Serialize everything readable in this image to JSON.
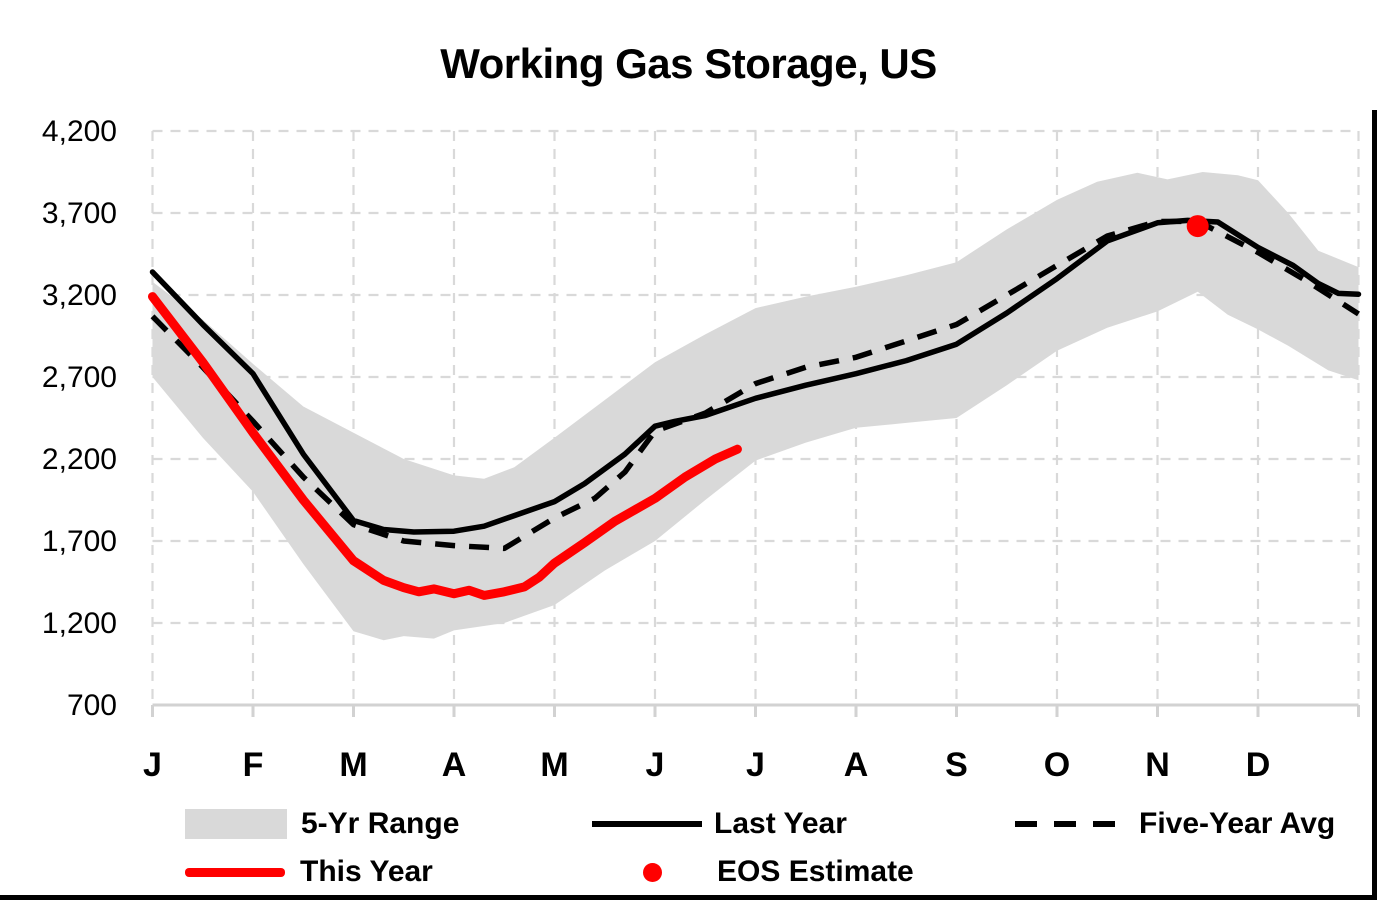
{
  "window": {
    "background": "#FFFFFF",
    "border_color": "#000000"
  },
  "title": "Working Gas Storage, US",
  "colors": {
    "band": "#D9D9D9",
    "gridline": "#D9D9D9",
    "black_series": "#000000",
    "red_series": "#FF0000",
    "text": "#000000"
  },
  "legend": {
    "position": "bottom",
    "items": [
      {
        "label": "5-Yr Range",
        "swatch": "gray-band-swatch"
      },
      {
        "label": "Last Year",
        "swatch": "black-line-swatch"
      },
      {
        "label": "Five-Year Avg",
        "swatch": "black-dashed-line-swatch"
      },
      {
        "label": "This Year",
        "swatch": "red-line-swatch"
      },
      {
        "label": "EOS Estimate",
        "swatch": "red-dot-swatch"
      }
    ]
  },
  "chart_data": {
    "type": "line",
    "title": "Working Gas Storage, US",
    "grid": true,
    "legend_position": "bottom",
    "x_axis": {
      "labels": [
        "J",
        "F",
        "M",
        "A",
        "M",
        "J",
        "J",
        "A",
        "S",
        "O",
        "N",
        "D"
      ],
      "unit": "month-start-index",
      "range": [
        0,
        12
      ],
      "gridlines": true
    },
    "y_axis": {
      "range": [
        700,
        4200
      ],
      "gridlines": true,
      "ticks": [
        {
          "value": 4200,
          "label": "4,200"
        },
        {
          "value": 3700,
          "label": "3,700"
        },
        {
          "value": 3200,
          "label": "3,200"
        },
        {
          "value": 2700,
          "label": "2,700"
        },
        {
          "value": 2200,
          "label": "2,200"
        },
        {
          "value": 1700,
          "label": "1,700"
        },
        {
          "value": 1200,
          "label": "1,200"
        },
        {
          "value": 700,
          "label": "700"
        }
      ]
    },
    "series": [
      {
        "name": "5-Yr Range",
        "type": "band",
        "color": "#D9D9D9",
        "upper": [
          [
            0,
            3280
          ],
          [
            0.5,
            3050
          ],
          [
            1,
            2780
          ],
          [
            1.5,
            2520
          ],
          [
            2,
            2360
          ],
          [
            2.5,
            2200
          ],
          [
            3,
            2100
          ],
          [
            3.3,
            2080
          ],
          [
            3.6,
            2150
          ],
          [
            4,
            2330
          ],
          [
            4.5,
            2560
          ],
          [
            5,
            2790
          ],
          [
            5.5,
            2960
          ],
          [
            6,
            3120
          ],
          [
            6.5,
            3190
          ],
          [
            7,
            3250
          ],
          [
            7.5,
            3320
          ],
          [
            8,
            3400
          ],
          [
            8.5,
            3600
          ],
          [
            9,
            3780
          ],
          [
            9.4,
            3890
          ],
          [
            9.8,
            3945
          ],
          [
            10.1,
            3905
          ],
          [
            10.45,
            3950
          ],
          [
            10.8,
            3930
          ],
          [
            11,
            3900
          ],
          [
            11.3,
            3700
          ],
          [
            11.6,
            3470
          ],
          [
            12,
            3370
          ]
        ],
        "lower": [
          [
            0,
            2700
          ],
          [
            0.5,
            2330
          ],
          [
            1,
            2000
          ],
          [
            1.5,
            1560
          ],
          [
            2,
            1150
          ],
          [
            2.3,
            1095
          ],
          [
            2.5,
            1120
          ],
          [
            2.8,
            1105
          ],
          [
            3,
            1155
          ],
          [
            3.5,
            1200
          ],
          [
            4,
            1310
          ],
          [
            4.5,
            1520
          ],
          [
            5,
            1700
          ],
          [
            5.5,
            1950
          ],
          [
            6,
            2190
          ],
          [
            6.5,
            2300
          ],
          [
            7,
            2390
          ],
          [
            7.5,
            2420
          ],
          [
            8,
            2450
          ],
          [
            8.5,
            2650
          ],
          [
            9,
            2860
          ],
          [
            9.5,
            3000
          ],
          [
            10,
            3100
          ],
          [
            10.4,
            3220
          ],
          [
            10.7,
            3080
          ],
          [
            11,
            2990
          ],
          [
            11.3,
            2890
          ],
          [
            11.7,
            2740
          ],
          [
            12,
            2680
          ]
        ]
      },
      {
        "name": "Last Year",
        "type": "line",
        "style": "solid",
        "color": "#000000",
        "width": 5.5,
        "points": [
          [
            0,
            3340
          ],
          [
            0.5,
            3020
          ],
          [
            1,
            2720
          ],
          [
            1.5,
            2230
          ],
          [
            2,
            1825
          ],
          [
            2.3,
            1770
          ],
          [
            2.6,
            1755
          ],
          [
            3,
            1760
          ],
          [
            3.3,
            1790
          ],
          [
            3.6,
            1855
          ],
          [
            4,
            1940
          ],
          [
            4.3,
            2050
          ],
          [
            4.7,
            2230
          ],
          [
            5,
            2400
          ],
          [
            5.2,
            2430
          ],
          [
            5.5,
            2465
          ],
          [
            6,
            2570
          ],
          [
            6.5,
            2650
          ],
          [
            7,
            2720
          ],
          [
            7.5,
            2800
          ],
          [
            8,
            2900
          ],
          [
            8.5,
            3090
          ],
          [
            9,
            3300
          ],
          [
            9.5,
            3530
          ],
          [
            10,
            3640
          ],
          [
            10.3,
            3655
          ],
          [
            10.6,
            3645
          ],
          [
            11,
            3490
          ],
          [
            11.35,
            3380
          ],
          [
            11.6,
            3270
          ],
          [
            11.8,
            3210
          ],
          [
            12,
            3205
          ]
        ]
      },
      {
        "name": "Five-Year Avg",
        "type": "line",
        "style": "dashed",
        "color": "#000000",
        "width": 5.5,
        "dash": "20 14",
        "points": [
          [
            0,
            3070
          ],
          [
            0.5,
            2760
          ],
          [
            1,
            2430
          ],
          [
            1.5,
            2090
          ],
          [
            2,
            1800
          ],
          [
            2.5,
            1700
          ],
          [
            3,
            1672
          ],
          [
            3.5,
            1655
          ],
          [
            4,
            1840
          ],
          [
            4.4,
            1960
          ],
          [
            4.7,
            2120
          ],
          [
            5,
            2370
          ],
          [
            5.5,
            2480
          ],
          [
            6,
            2660
          ],
          [
            6.5,
            2760
          ],
          [
            7,
            2820
          ],
          [
            7.5,
            2920
          ],
          [
            8,
            3020
          ],
          [
            8.5,
            3200
          ],
          [
            9,
            3380
          ],
          [
            9.5,
            3560
          ],
          [
            10,
            3648
          ],
          [
            10.4,
            3650
          ],
          [
            11,
            3460
          ],
          [
            11.5,
            3280
          ],
          [
            12,
            3085
          ]
        ]
      },
      {
        "name": "This Year",
        "type": "line",
        "style": "solid",
        "color": "#FF0000",
        "width": 9,
        "points": [
          [
            0,
            3190
          ],
          [
            0.5,
            2790
          ],
          [
            1,
            2360
          ],
          [
            1.5,
            1950
          ],
          [
            2,
            1580
          ],
          [
            2.3,
            1460
          ],
          [
            2.5,
            1415
          ],
          [
            2.65,
            1390
          ],
          [
            2.8,
            1408
          ],
          [
            3,
            1378
          ],
          [
            3.15,
            1400
          ],
          [
            3.3,
            1368
          ],
          [
            3.5,
            1390
          ],
          [
            3.7,
            1420
          ],
          [
            3.85,
            1480
          ],
          [
            4,
            1565
          ],
          [
            4.3,
            1690
          ],
          [
            4.6,
            1820
          ],
          [
            5,
            1960
          ],
          [
            5.3,
            2090
          ],
          [
            5.6,
            2200
          ],
          [
            5.82,
            2260
          ]
        ]
      },
      {
        "name": "EOS Estimate",
        "type": "point",
        "color": "#FF0000",
        "radius": 11,
        "point": [
          10.4,
          3620
        ]
      }
    ]
  }
}
